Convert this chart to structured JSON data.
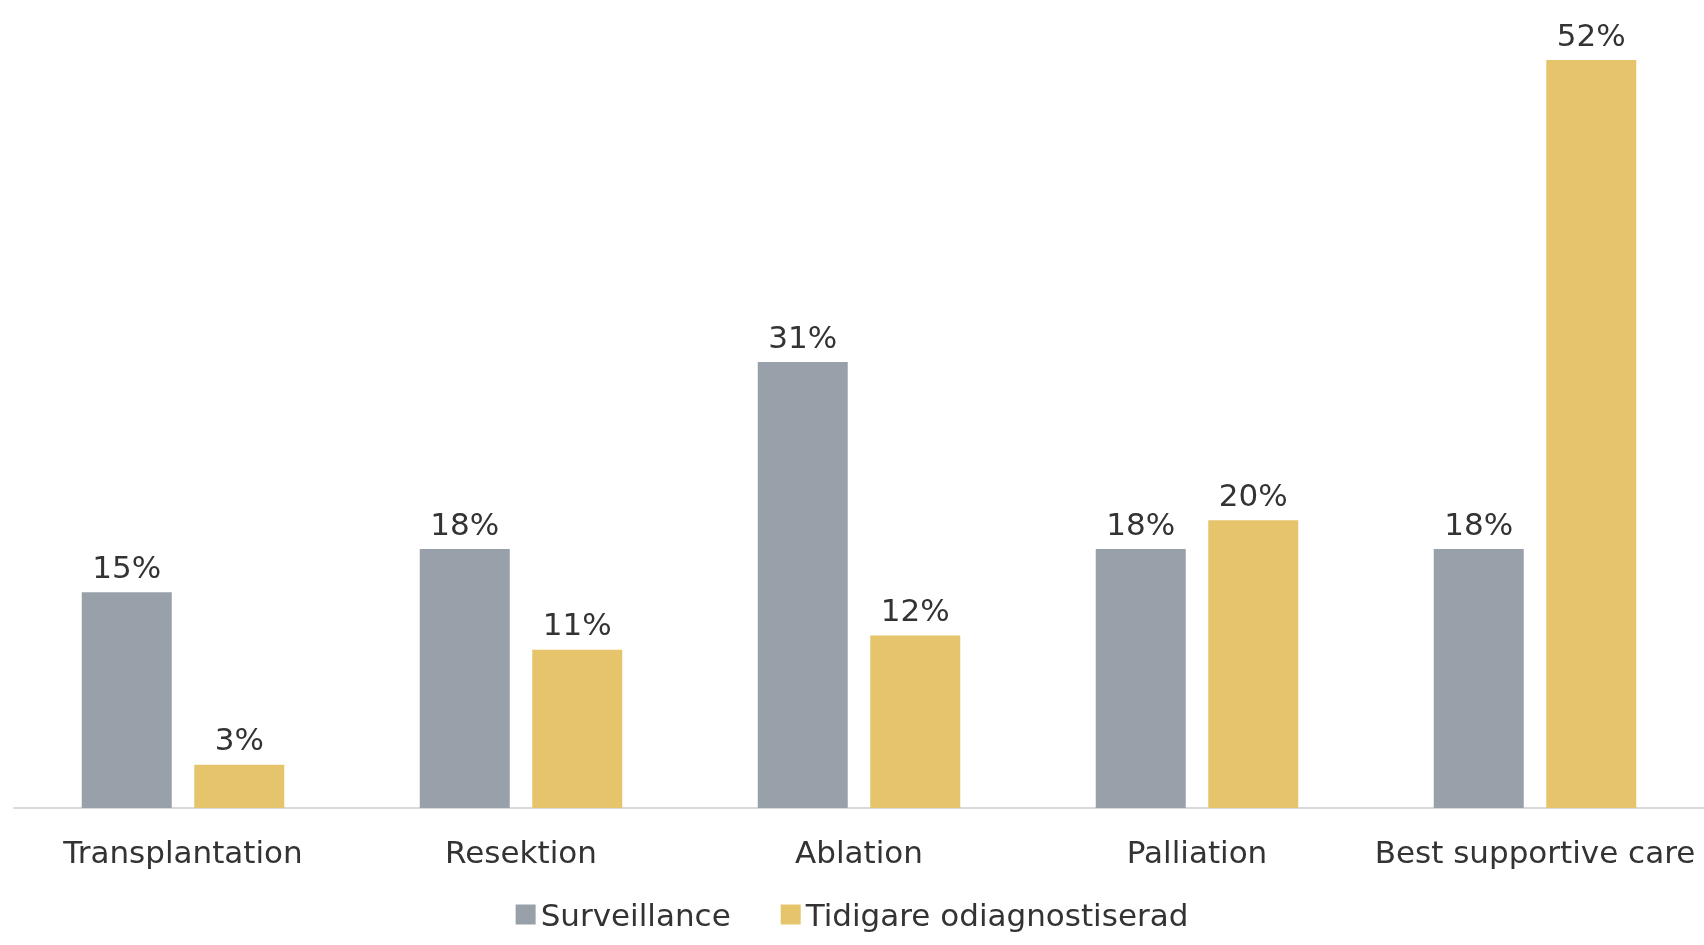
{
  "chart_data": {
    "type": "bar",
    "categories": [
      "Transplantation",
      "Resektion",
      "Ablation",
      "Palliation",
      "Best supportive care"
    ],
    "series": [
      {
        "name": "Surveillance",
        "color": "#98a0a9",
        "values": [
          15,
          18,
          31,
          18,
          18
        ],
        "value_labels": [
          "15%",
          "18%",
          "31%",
          "18%",
          "18%"
        ]
      },
      {
        "name": "Tidigare odiagnostiserad",
        "color": "#e5c46c",
        "values": [
          3,
          11,
          12,
          20,
          52
        ],
        "value_labels": [
          "3%",
          "11%",
          "12%",
          "20%",
          "52%"
        ]
      }
    ],
    "legend": "bottom",
    "grid": false
  }
}
